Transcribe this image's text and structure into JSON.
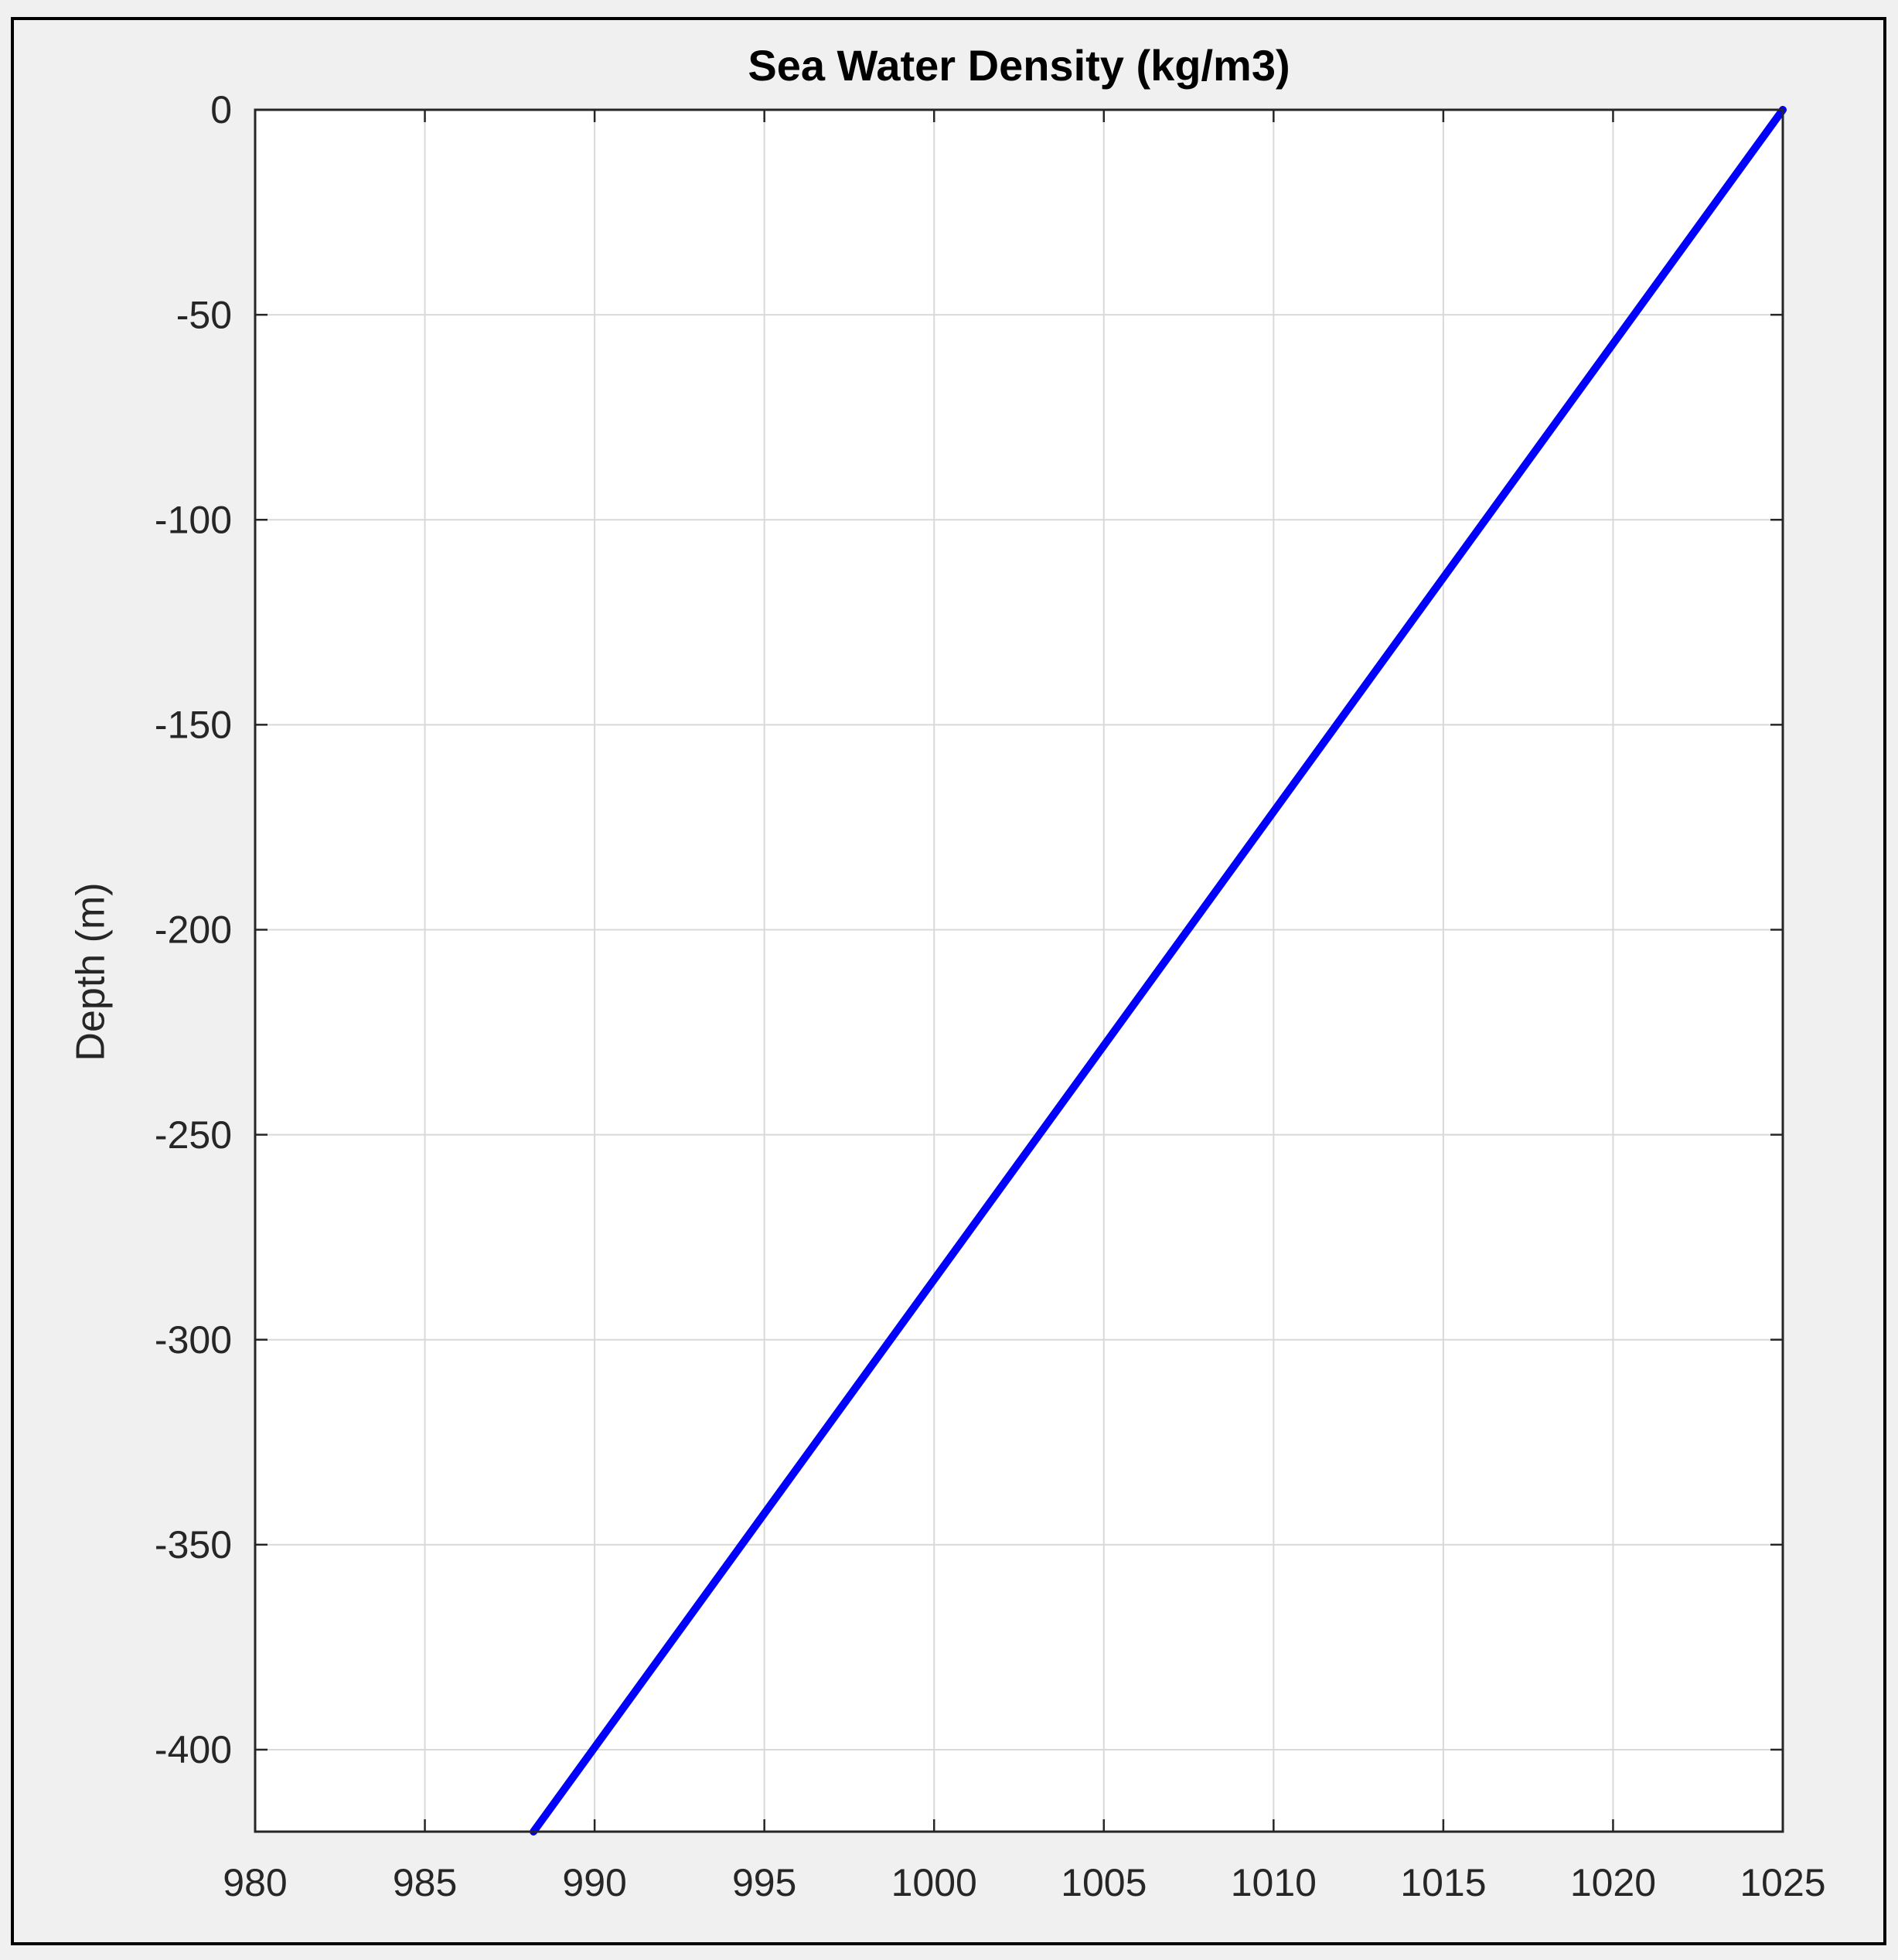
{
  "chart_data": {
    "type": "line",
    "title": "Sea Water Density (kg/m3)",
    "ylabel": "Depth (m)",
    "x": [
      1025,
      988.2
    ],
    "values": [
      0,
      -420
    ],
    "color": "#0000ff",
    "xlim": [
      980,
      1025
    ],
    "xticks": [
      980,
      985,
      990,
      995,
      1000,
      1005,
      1010,
      1015,
      1020,
      1025
    ],
    "ylim": [
      -420,
      0
    ],
    "yticks": [
      -400,
      -350,
      -300,
      -250,
      -200,
      -150,
      -100,
      -50,
      0
    ],
    "grid": true
  }
}
